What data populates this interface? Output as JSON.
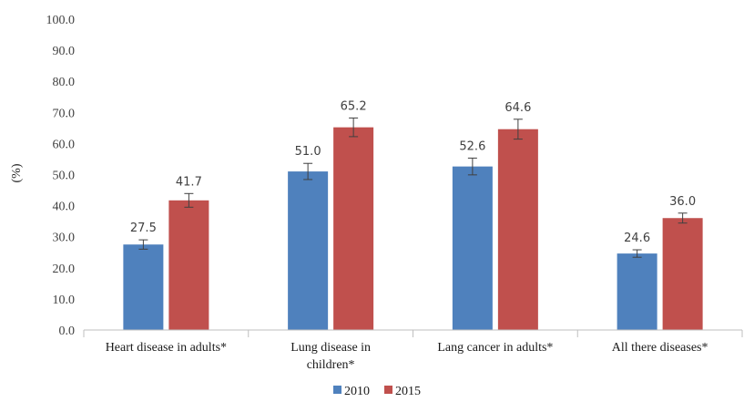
{
  "chart_data": {
    "type": "bar",
    "title": "",
    "xlabel": "",
    "ylabel": "(%)",
    "ylim": [
      0,
      100
    ],
    "yticks": [
      "0.0",
      "10.0",
      "20.0",
      "30.0",
      "40.0",
      "50.0",
      "60.0",
      "70.0",
      "80.0",
      "90.0",
      "100.0"
    ],
    "categories": [
      [
        "Heart disease in adults*"
      ],
      [
        "Lung disease in",
        "children*"
      ],
      [
        "Lang cancer in adults*"
      ],
      [
        "All there diseases*"
      ]
    ],
    "series": [
      {
        "name": "2010",
        "color": "#4f81bd",
        "values": [
          27.5,
          51.0,
          52.6,
          24.6
        ],
        "labels": [
          "27.5",
          "51.0",
          "52.6",
          "24.6"
        ],
        "error": [
          1.5,
          2.6,
          2.7,
          1.2
        ]
      },
      {
        "name": "2015",
        "color": "#c0504d",
        "values": [
          41.7,
          65.2,
          64.6,
          36.0
        ],
        "labels": [
          "41.7",
          "65.2",
          "64.6",
          "36.0"
        ],
        "error": [
          2.2,
          3.0,
          3.2,
          1.6
        ]
      }
    ],
    "grid": false,
    "legend": "bottom-center"
  }
}
